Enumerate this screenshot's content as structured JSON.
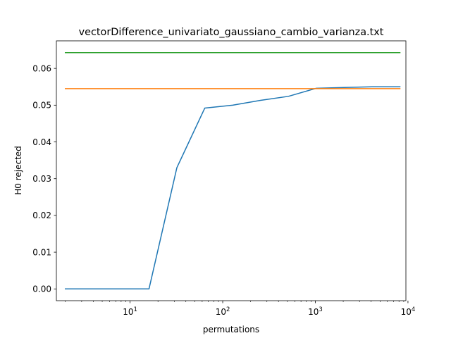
{
  "chart_data": {
    "type": "line",
    "title": "vectorDifference_univariato_gaussiano_cambio_varianza.txt",
    "xlabel": "permutations",
    "ylabel": "H0 rejected",
    "xscale": "log",
    "xlim": [
      1.6,
      9500
    ],
    "ylim": [
      -0.0032,
      0.0675
    ],
    "grid": false,
    "x_ticks": [
      {
        "value": 10,
        "base": "10",
        "exp": "1"
      },
      {
        "value": 100,
        "base": "10",
        "exp": "2"
      },
      {
        "value": 1000,
        "base": "10",
        "exp": "3"
      },
      {
        "value": 10000,
        "base": "10",
        "exp": "4"
      }
    ],
    "y_ticks": [
      {
        "value": 0.0,
        "label": "0.00"
      },
      {
        "value": 0.01,
        "label": "0.01"
      },
      {
        "value": 0.02,
        "label": "0.02"
      },
      {
        "value": 0.03,
        "label": "0.03"
      },
      {
        "value": 0.04,
        "label": "0.04"
      },
      {
        "value": 0.05,
        "label": "0.05"
      },
      {
        "value": 0.06,
        "label": "0.06"
      }
    ],
    "series": [
      {
        "color": "#1f77b4",
        "x": [
          2,
          4,
          8,
          16,
          32,
          64,
          128,
          256,
          512,
          1024,
          2048,
          4096,
          8192
        ],
        "values": [
          0.0,
          0.0,
          0.0,
          0.0,
          0.033,
          0.0492,
          0.05,
          0.0513,
          0.0524,
          0.0546,
          0.0548,
          0.055,
          0.055
        ]
      },
      {
        "color": "#ff7f0e",
        "x": [
          2,
          8192
        ],
        "values": [
          0.0545,
          0.0545
        ]
      },
      {
        "color": "#2ca02c",
        "x": [
          2,
          8192
        ],
        "values": [
          0.0643,
          0.0643
        ]
      }
    ]
  }
}
